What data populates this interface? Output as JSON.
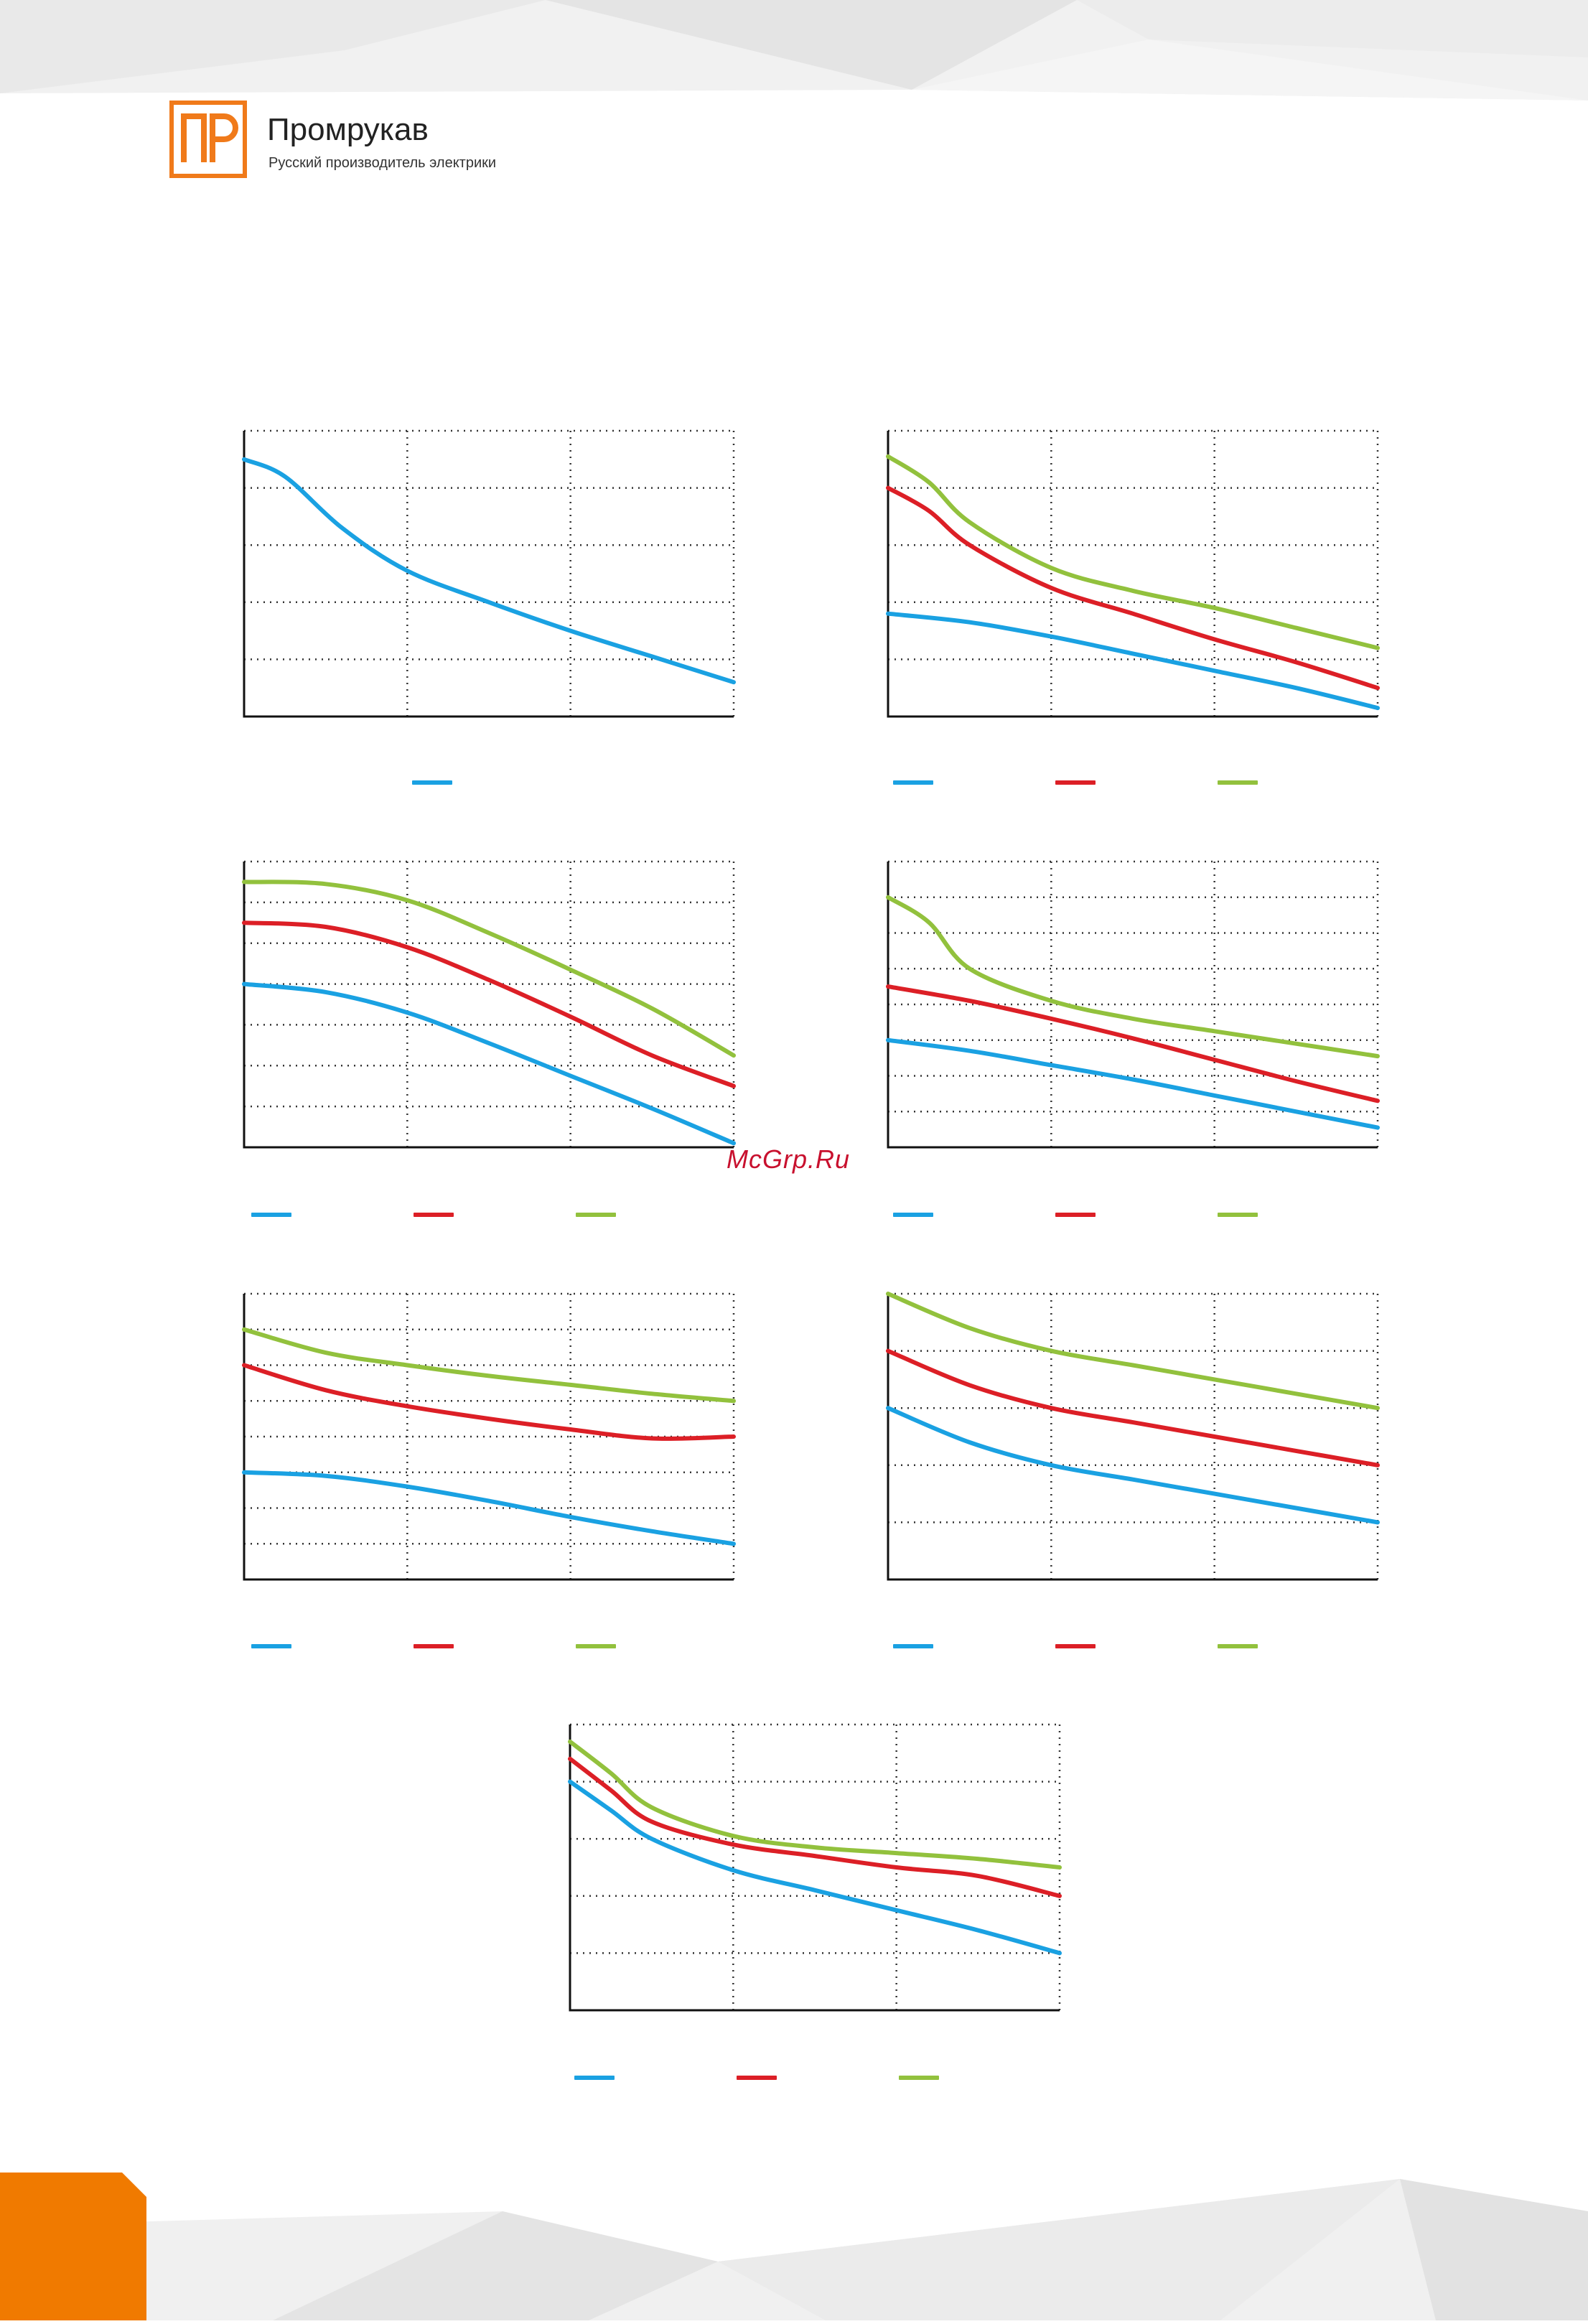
{
  "brand": {
    "logo_letters": "ГР",
    "name": "Промрукав",
    "tagline": "Русский производитель электрики",
    "color": "#F07A1A"
  },
  "watermark": "McGrp.Ru",
  "colors": {
    "blue": "#1AA1E2",
    "red": "#DC1F26",
    "green": "#92C13D",
    "frame": "#111111",
    "grid": "#333333"
  },
  "chart_data": [
    {
      "type": "line",
      "title": "",
      "xlabel": "",
      "ylabel": "",
      "xlim": [
        0,
        3
      ],
      "ylim": [
        0,
        5
      ],
      "x_gridlines": 3,
      "y_gridlines": 5,
      "grid": "dotted",
      "series": [
        {
          "color": "#1AA1E2",
          "x": [
            0,
            0.25,
            0.6,
            1.0,
            1.5,
            2.0,
            2.5,
            3.0
          ],
          "y": [
            4.5,
            4.2,
            3.3,
            2.55,
            2.0,
            1.5,
            1.05,
            0.6
          ]
        }
      ]
    },
    {
      "type": "line",
      "title": "",
      "xlabel": "",
      "ylabel": "",
      "xlim": [
        0,
        3
      ],
      "ylim": [
        0,
        5
      ],
      "x_gridlines": 3,
      "y_gridlines": 5,
      "grid": "dotted",
      "series": [
        {
          "color": "#1AA1E2",
          "x": [
            0,
            0.5,
            1.0,
            1.5,
            2.0,
            2.5,
            3.0
          ],
          "y": [
            1.8,
            1.65,
            1.4,
            1.1,
            0.8,
            0.5,
            0.15
          ]
        },
        {
          "color": "#DC1F26",
          "x": [
            0,
            0.25,
            0.5,
            1.0,
            1.5,
            2.0,
            2.5,
            3.0
          ],
          "y": [
            4.0,
            3.6,
            3.0,
            2.25,
            1.8,
            1.35,
            0.95,
            0.5
          ]
        },
        {
          "color": "#92C13D",
          "x": [
            0,
            0.25,
            0.5,
            1.0,
            1.5,
            2.0,
            2.5,
            3.0
          ],
          "y": [
            4.55,
            4.1,
            3.4,
            2.6,
            2.2,
            1.9,
            1.55,
            1.2
          ]
        }
      ]
    },
    {
      "type": "line",
      "title": "",
      "xlabel": "",
      "ylabel": "",
      "xlim": [
        0,
        3
      ],
      "ylim": [
        0,
        7
      ],
      "x_gridlines": 3,
      "y_gridlines": 7,
      "grid": "dotted",
      "series": [
        {
          "color": "#1AA1E2",
          "x": [
            0,
            0.5,
            1.0,
            1.5,
            2.0,
            2.5,
            3.0
          ],
          "y": [
            4.0,
            3.8,
            3.3,
            2.55,
            1.75,
            0.95,
            0.1
          ]
        },
        {
          "color": "#DC1F26",
          "x": [
            0,
            0.5,
            1.0,
            1.5,
            2.0,
            2.5,
            3.0
          ],
          "y": [
            5.5,
            5.4,
            4.9,
            4.1,
            3.2,
            2.25,
            1.5
          ]
        },
        {
          "color": "#92C13D",
          "x": [
            0,
            0.5,
            1.0,
            1.5,
            2.0,
            2.5,
            3.0
          ],
          "y": [
            6.5,
            6.45,
            6.05,
            5.25,
            4.35,
            3.4,
            2.25
          ]
        }
      ]
    },
    {
      "type": "line",
      "title": "",
      "xlabel": "",
      "ylabel": "",
      "xlim": [
        0,
        3
      ],
      "ylim": [
        0,
        8
      ],
      "x_gridlines": 3,
      "y_gridlines": 8,
      "grid": "dotted",
      "series": [
        {
          "color": "#1AA1E2",
          "x": [
            0,
            0.5,
            1.0,
            1.5,
            2.0,
            2.5,
            3.0
          ],
          "y": [
            3.0,
            2.7,
            2.3,
            1.9,
            1.45,
            1.0,
            0.55
          ]
        },
        {
          "color": "#DC1F26",
          "x": [
            0,
            0.5,
            1.0,
            1.5,
            2.0,
            2.5,
            3.0
          ],
          "y": [
            4.5,
            4.1,
            3.6,
            3.05,
            2.45,
            1.85,
            1.3
          ]
        },
        {
          "color": "#92C13D",
          "x": [
            0,
            0.25,
            0.5,
            1.0,
            1.5,
            2.0,
            2.5,
            3.0
          ],
          "y": [
            7.0,
            6.3,
            5.0,
            4.1,
            3.6,
            3.25,
            2.9,
            2.55
          ]
        }
      ]
    },
    {
      "type": "line",
      "title": "",
      "xlabel": "",
      "ylabel": "",
      "xlim": [
        0,
        3
      ],
      "ylim": [
        0,
        8
      ],
      "x_gridlines": 3,
      "y_gridlines": 8,
      "grid": "dotted",
      "series": [
        {
          "color": "#1AA1E2",
          "x": [
            0,
            0.5,
            1.0,
            1.5,
            2.0,
            2.5,
            3.0
          ],
          "y": [
            3.0,
            2.9,
            2.6,
            2.2,
            1.75,
            1.35,
            1.0
          ]
        },
        {
          "color": "#DC1F26",
          "x": [
            0,
            0.5,
            1.0,
            1.5,
            2.0,
            2.5,
            3.0
          ],
          "y": [
            6.0,
            5.3,
            4.85,
            4.5,
            4.2,
            3.95,
            4.0
          ]
        },
        {
          "color": "#92C13D",
          "x": [
            0,
            0.5,
            1.0,
            1.5,
            2.0,
            2.5,
            3.0
          ],
          "y": [
            7.0,
            6.35,
            6.0,
            5.7,
            5.45,
            5.2,
            5.0
          ]
        }
      ]
    },
    {
      "type": "line",
      "title": "",
      "xlabel": "",
      "ylabel": "",
      "xlim": [
        0,
        3
      ],
      "ylim": [
        0,
        5
      ],
      "x_gridlines": 3,
      "y_gridlines": 5,
      "grid": "dotted",
      "series": [
        {
          "color": "#1AA1E2",
          "x": [
            0,
            0.5,
            1.0,
            1.5,
            2.0,
            2.5,
            3.0
          ],
          "y": [
            3.0,
            2.4,
            2.0,
            1.75,
            1.5,
            1.25,
            1.0
          ]
        },
        {
          "color": "#DC1F26",
          "x": [
            0,
            0.5,
            1.0,
            1.5,
            2.0,
            2.5,
            3.0
          ],
          "y": [
            4.0,
            3.4,
            3.0,
            2.75,
            2.5,
            2.25,
            2.0
          ]
        },
        {
          "color": "#92C13D",
          "x": [
            0,
            0.5,
            1.0,
            1.5,
            2.0,
            2.5,
            3.0
          ],
          "y": [
            5.0,
            4.4,
            4.0,
            3.75,
            3.5,
            3.25,
            3.0
          ]
        }
      ]
    },
    {
      "type": "line",
      "title": "",
      "xlabel": "",
      "ylabel": "",
      "xlim": [
        0,
        3
      ],
      "ylim": [
        0,
        5
      ],
      "x_gridlines": 3,
      "y_gridlines": 5,
      "grid": "dotted",
      "series": [
        {
          "color": "#1AA1E2",
          "x": [
            0,
            0.25,
            0.5,
            1.0,
            1.5,
            2.0,
            2.5,
            3.0
          ],
          "y": [
            4.0,
            3.5,
            3.0,
            2.45,
            2.1,
            1.75,
            1.4,
            1.0
          ]
        },
        {
          "color": "#DC1F26",
          "x": [
            0,
            0.25,
            0.5,
            1.0,
            1.5,
            2.0,
            2.5,
            3.0
          ],
          "y": [
            4.4,
            3.85,
            3.3,
            2.9,
            2.7,
            2.5,
            2.35,
            2.0
          ]
        },
        {
          "color": "#92C13D",
          "x": [
            0,
            0.25,
            0.5,
            1.0,
            1.5,
            2.0,
            2.5,
            3.0
          ],
          "y": [
            4.7,
            4.15,
            3.55,
            3.05,
            2.85,
            2.75,
            2.65,
            2.5
          ]
        }
      ]
    }
  ]
}
